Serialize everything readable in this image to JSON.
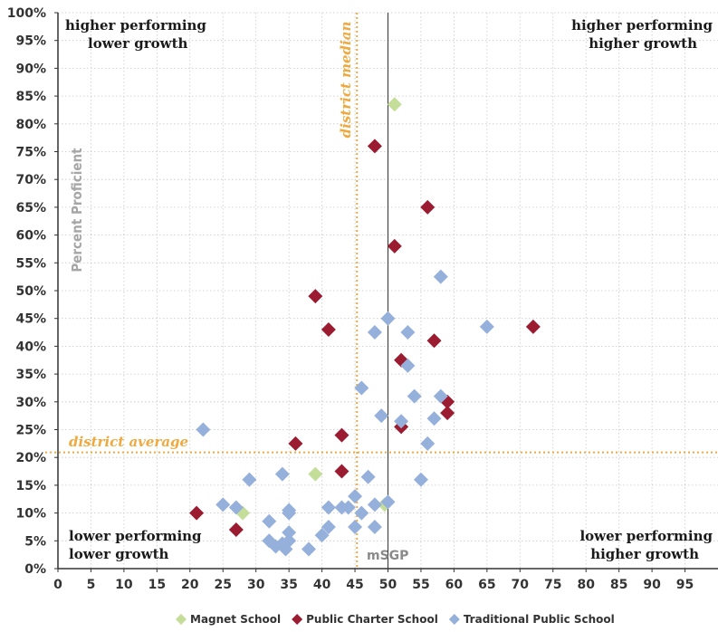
{
  "chart_data": {
    "type": "scatter",
    "title": "",
    "xlabel": "mSGP",
    "ylabel": "Percent Proficient",
    "xlim": [
      0,
      100
    ],
    "ylim": [
      0,
      100
    ],
    "x_ticks": [
      0,
      5,
      10,
      15,
      20,
      25,
      30,
      35,
      40,
      45,
      50,
      55,
      60,
      65,
      70,
      75,
      80,
      85,
      90,
      95
    ],
    "y_ticks": [
      0,
      5,
      10,
      15,
      20,
      25,
      30,
      35,
      40,
      45,
      50,
      55,
      60,
      65,
      70,
      75,
      80,
      85,
      90,
      95,
      100
    ],
    "y_tick_suffix": "%",
    "grid": true,
    "legend_position": "bottom-center",
    "quadrant_labels": {
      "top_left": [
        "higher performing",
        "lower growth"
      ],
      "top_right": [
        "higher performing",
        "higher growth"
      ],
      "bottom_left": [
        "lower performing",
        "lower growth"
      ],
      "bottom_right": [
        "lower performing",
        "higher growth"
      ]
    },
    "reference_lines": {
      "vertical_solid_x": 50,
      "vertical_dotted": {
        "x": 45.3,
        "label": "district median"
      },
      "horizontal_dotted": {
        "y": 20.9,
        "label": "district average"
      }
    },
    "series": [
      {
        "name": "Magnet School",
        "color": "#c4de9a",
        "points": [
          [
            51,
            83.5
          ],
          [
            39,
            17
          ],
          [
            28,
            10
          ],
          [
            49.5,
            11.5
          ]
        ]
      },
      {
        "name": "Public Charter School",
        "color": "#9b1b30",
        "points": [
          [
            48,
            76
          ],
          [
            56,
            65
          ],
          [
            51,
            58
          ],
          [
            39,
            49
          ],
          [
            41,
            43
          ],
          [
            72,
            43.5
          ],
          [
            57,
            41
          ],
          [
            52,
            37.5
          ],
          [
            59,
            30
          ],
          [
            59,
            28
          ],
          [
            52,
            25.5
          ],
          [
            43,
            24
          ],
          [
            36,
            22.5
          ],
          [
            43,
            17.5
          ],
          [
            21,
            10
          ],
          [
            27,
            7
          ]
        ]
      },
      {
        "name": "Traditional Public School",
        "color": "#96b0dc",
        "points": [
          [
            58,
            52.5
          ],
          [
            65,
            43.5
          ],
          [
            50,
            45
          ],
          [
            48,
            42.5
          ],
          [
            53,
            42.5
          ],
          [
            53,
            36.5
          ],
          [
            46,
            32.5
          ],
          [
            54,
            31
          ],
          [
            58,
            31
          ],
          [
            49,
            27.5
          ],
          [
            52,
            26.5
          ],
          [
            57,
            27
          ],
          [
            56,
            22.5
          ],
          [
            22,
            25
          ],
          [
            29,
            16
          ],
          [
            34,
            17
          ],
          [
            47,
            16.5
          ],
          [
            55,
            16
          ],
          [
            45,
            13
          ],
          [
            25,
            11.5
          ],
          [
            27,
            11
          ],
          [
            35,
            10
          ],
          [
            35,
            10.5
          ],
          [
            41,
            11
          ],
          [
            43,
            11
          ],
          [
            44,
            11
          ],
          [
            48,
            11.5
          ],
          [
            50,
            12
          ],
          [
            46,
            10
          ],
          [
            32,
            8.5
          ],
          [
            35,
            6.5
          ],
          [
            41,
            7.5
          ],
          [
            45,
            7.5
          ],
          [
            48,
            7.5
          ],
          [
            40,
            6
          ],
          [
            32,
            5
          ],
          [
            34,
            4.5
          ],
          [
            35,
            5
          ],
          [
            33,
            4
          ],
          [
            34.5,
            3.5
          ],
          [
            38,
            3.5
          ]
        ]
      }
    ]
  }
}
